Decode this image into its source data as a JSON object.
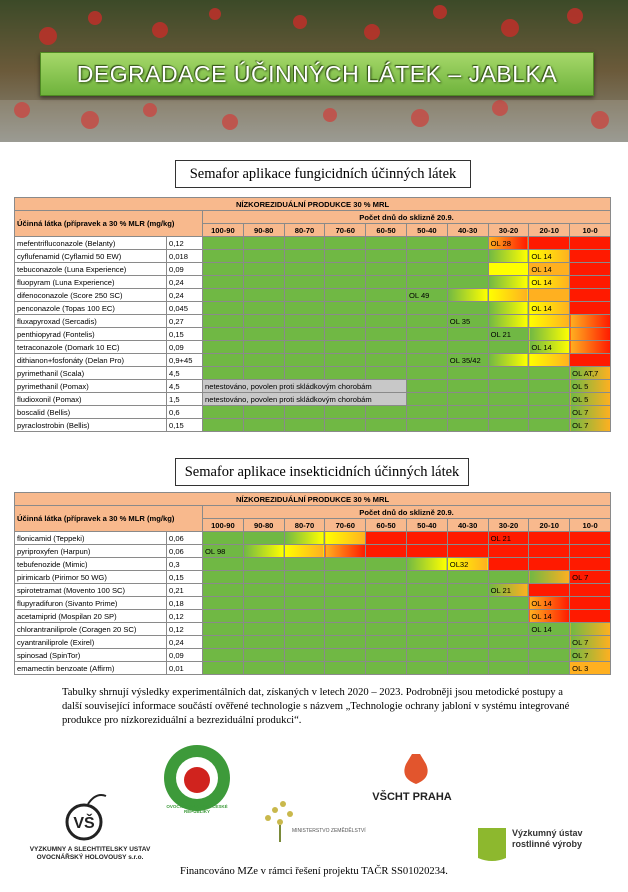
{
  "header": {
    "title": "DEGRADACE ÚČINNÝCH LÁTEK – JABLKA"
  },
  "palette": {
    "green": "#70b844",
    "yellow": "#ffff00",
    "orange": "#ffb020",
    "red": "#ff1a00",
    "gray": "#c8c8c8"
  },
  "fungicides": {
    "title": "Semafor aplikace fungicidních účinných látek",
    "banner": "NÍZKOREZIDUÁLNÍ PRODUKCE 30 % MRL",
    "substance_header": "Účinná látka (přípravek a 30 % MLR (mg/kg)",
    "days_header": "Počet dnů do sklizně 20.9.",
    "columns": [
      "100-90",
      "90-80",
      "80-70",
      "70-60",
      "60-50",
      "50-40",
      "40-30",
      "30-20",
      "20-10",
      "10-0"
    ],
    "rows": [
      {
        "name": "mefentrifluconazole (Belanty)",
        "mrl": "0,12",
        "cells": [
          "green",
          "green",
          "green",
          "green",
          "green",
          "green",
          "green",
          {
            "fill": "orange-red",
            "text": "OL 28"
          },
          "red",
          "red"
        ]
      },
      {
        "name": "cyflufenamid (Cyflamid 50 EW)",
        "mrl": "0,018",
        "cells": [
          "green",
          "green",
          "green",
          "green",
          "green",
          "green",
          "green",
          "green-yellow",
          {
            "fill": "yellow-orange",
            "text": "OL 14"
          },
          "red"
        ]
      },
      {
        "name": "tebuconazole (Luna Experience)",
        "mrl": "0,09",
        "cells": [
          "green",
          "green",
          "green",
          "green",
          "green",
          "green",
          "green",
          "yellow",
          {
            "fill": "orange",
            "text": "OL 14"
          },
          "red"
        ]
      },
      {
        "name": "fluopyram (Luna Experience)",
        "mrl": "0,24",
        "cells": [
          "green",
          "green",
          "green",
          "green",
          "green",
          "green",
          "green",
          "green-yellow",
          {
            "fill": "yellow-orange",
            "text": "OL 14"
          },
          "red"
        ]
      },
      {
        "name": "difenoconazole (Score 250 SC)",
        "mrl": "0,24",
        "cells": [
          "green",
          "green",
          "green",
          "green",
          "green",
          {
            "fill": "green",
            "text": "OL 49"
          },
          "green-yellow",
          "yellow-orange",
          "orange",
          "red"
        ]
      },
      {
        "name": "penconazole (Topas 100 EC)",
        "mrl": "0,045",
        "cells": [
          "green",
          "green",
          "green",
          "green",
          "green",
          "green",
          "green",
          "green-yellow",
          {
            "fill": "yellow-orange",
            "text": "OL 14"
          },
          "red"
        ]
      },
      {
        "name": "fluxapyroxad (Sercadis)",
        "mrl": "0,27",
        "cells": [
          "green",
          "green",
          "green",
          "green",
          "green",
          "green",
          {
            "fill": "green",
            "text": "OL 35"
          },
          "green-yellow",
          "yellow-orange",
          "orange-red"
        ]
      },
      {
        "name": "penthiopyrad (Fontelis)",
        "mrl": "0,15",
        "cells": [
          "green",
          "green",
          "green",
          "green",
          "green",
          "green",
          "green",
          {
            "fill": "green",
            "text": "OL 21"
          },
          "green-yellow",
          "orange-red"
        ]
      },
      {
        "name": "tetraconazole (Domark 10 EC)",
        "mrl": "0,09",
        "cells": [
          "green",
          "green",
          "green",
          "green",
          "green",
          "green",
          "green",
          "green",
          {
            "fill": "green-yellow",
            "text": "OL 14"
          },
          "orange-red"
        ]
      },
      {
        "name": "dithianon+fosfonáty (Delan Pro)",
        "mrl": "0,9+45",
        "cells": [
          "green",
          "green",
          "green",
          "green",
          "green",
          "green",
          {
            "fill": "green",
            "text": "OL 35/42"
          },
          "green-yellow",
          "yellow-orange",
          "red"
        ]
      },
      {
        "name": "pyrimethanil (Scala)",
        "mrl": "4,5",
        "cells": [
          "green",
          "green",
          "green",
          "green",
          "green",
          "green",
          "green",
          "green",
          "green",
          {
            "fill": "green-orange",
            "text": "OL AT,7"
          }
        ]
      },
      {
        "name": "pyrimethanil (Pomax)",
        "mrl": "4,5",
        "cells": [
          {
            "fill": "gray",
            "text": "netestováno, povolen proti skládkovým chorobám",
            "span": 5
          },
          "green",
          "green",
          "green",
          "green",
          {
            "fill": "green-orange",
            "text": "OL 5"
          }
        ]
      },
      {
        "name": "fludioxonil (Pomax)",
        "mrl": "1,5",
        "cells": [
          {
            "fill": "gray",
            "text": "netestováno, povolen proti skládkovým chorobám",
            "span": 5
          },
          "green",
          "green",
          "green",
          "green",
          {
            "fill": "green-orange",
            "text": "OL 5"
          }
        ]
      },
      {
        "name": "boscalid (Bellis)",
        "mrl": "0,6",
        "cells": [
          "green",
          "green",
          "green",
          "green",
          "green",
          "green",
          "green",
          "green",
          "green",
          {
            "fill": "green-orange",
            "text": "OL 7"
          }
        ]
      },
      {
        "name": "pyraclostrobin (Bellis)",
        "mrl": "0,15",
        "cells": [
          "green",
          "green",
          "green",
          "green",
          "green",
          "green",
          "green",
          "green",
          "green",
          {
            "fill": "green-orange",
            "text": "OL 7"
          }
        ]
      }
    ]
  },
  "insecticides": {
    "title": "Semafor aplikace insekticidních účinných látek",
    "banner": "NÍZKOREZIDUÁLNÍ PRODUKCE 30 % MRL",
    "substance_header": "Účinná látka (přípravek a 30 % MLR (mg/kg)",
    "days_header": "Počet dnů do sklizně 20.9.",
    "columns": [
      "100-90",
      "90-80",
      "80-70",
      "70-60",
      "60-50",
      "50-40",
      "40-30",
      "30-20",
      "20-10",
      "10-0"
    ],
    "rows": [
      {
        "name": "flonicamid (Teppeki)",
        "mrl": "0,06",
        "cells": [
          "green",
          "green",
          "green-yellow",
          "yellow-orange",
          "red",
          "red",
          "red",
          {
            "fill": "red",
            "text": "OL 21"
          },
          "red",
          "red"
        ]
      },
      {
        "name": "pyriproxyfen (Harpun)",
        "mrl": "0,06",
        "cells": [
          {
            "fill": "green",
            "text": "OL 98"
          },
          "green-yellow",
          "yellow-orange",
          "orange-red",
          "red",
          "red",
          "red",
          "red",
          "red",
          "red"
        ]
      },
      {
        "name": "tebufenozide (Mimic)",
        "mrl": "0,3",
        "cells": [
          "green",
          "green",
          "green",
          "green",
          "green",
          "green-yellow",
          {
            "fill": "yellow-orange",
            "text": "OL32"
          },
          "red",
          "red",
          "red"
        ]
      },
      {
        "name": "pirimicarb (Pirimor 50 WG)",
        "mrl": "0,15",
        "cells": [
          "green",
          "green",
          "green",
          "green",
          "green",
          "green",
          "green",
          "green",
          "green-orange",
          {
            "fill": "red",
            "text": "OL 7"
          }
        ]
      },
      {
        "name": "spirotetramat (Movento 100 SC)",
        "mrl": "0,21",
        "cells": [
          "green",
          "green",
          "green",
          "green",
          "green",
          "green",
          "green",
          {
            "fill": "green-orange",
            "text": "OL 21"
          },
          "red",
          "red"
        ]
      },
      {
        "name": "flupyradifuron (Sivanto Prime)",
        "mrl": "0,18",
        "cells": [
          "green",
          "green",
          "green",
          "green",
          "green",
          "green",
          "green",
          "green",
          {
            "fill": "orange-red",
            "text": "OL 14"
          },
          "red"
        ]
      },
      {
        "name": "acetamiprid (Mospilan 20 SP)",
        "mrl": "0,12",
        "cells": [
          "green",
          "green",
          "green",
          "green",
          "green",
          "green",
          "green",
          "green",
          {
            "fill": "orange-red",
            "text": "OL 14"
          },
          "red"
        ]
      },
      {
        "name": "chlorantraniliprole (Coragen 20 SC)",
        "mrl": "0,12",
        "cells": [
          "green",
          "green",
          "green",
          "green",
          "green",
          "green",
          "green",
          "green",
          {
            "fill": "green",
            "text": "OL 14"
          },
          "green-orange"
        ]
      },
      {
        "name": "cyantraniliprole (Exirel)",
        "mrl": "0,24",
        "cells": [
          "green",
          "green",
          "green",
          "green",
          "green",
          "green",
          "green",
          "green",
          "green",
          {
            "fill": "green-orange",
            "text": "OL 7"
          }
        ]
      },
      {
        "name": "spinosad (SpinTor)",
        "mrl": "0,09",
        "cells": [
          "green",
          "green",
          "green",
          "green",
          "green",
          "green",
          "green",
          "green",
          "green",
          {
            "fill": "green-orange",
            "text": "OL 7"
          }
        ]
      },
      {
        "name": "emamectin benzoate (Affirm)",
        "mrl": "0,01",
        "cells": [
          "green",
          "green",
          "green",
          "green",
          "green",
          "green",
          "green",
          "green",
          "green",
          {
            "fill": "orange",
            "text": "OL 3"
          }
        ]
      }
    ]
  },
  "summary": "Tabulky shrnují výsledky experimentálních dat, získaných v letech 2020 – 2023. Podrobněji jsou metodické postupy a další související informace součástí ověřené technologie s názvem „Technologie ochrany jabloní v systému integrované produkce pro nízkoreziduální a bezreziduální produkci“.",
  "logos": {
    "vsuo": "VÝZKUMNÝ A ŠLECHTITELSKÝ ÚSTAV OVOCNÁŘSKÝ HOLOVOUSY s.r.o.",
    "unie": "OVOCNÁŘSKÁ UNIE ČESKÉ REPUBLIKY",
    "vscht": "VŠCHT PRAHA",
    "mze": "MINISTERSTVO ZEMĚDĚLSTVÍ",
    "vurv": "Výzkumný ústav rostlinné výroby"
  },
  "footer": "Financováno MZe v rámci řešení projektu TAČR SS01020234."
}
